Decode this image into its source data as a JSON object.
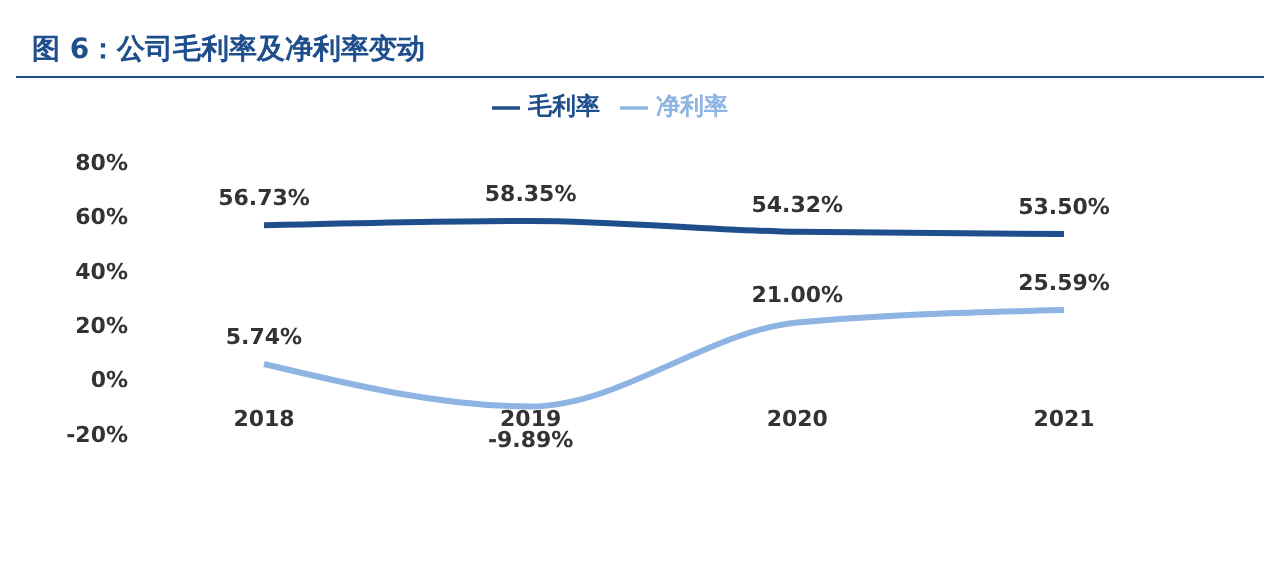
{
  "chart_data": {
    "type": "line",
    "title": "图 6：公司毛利率及净利率变动",
    "categories": [
      "2018",
      "2019",
      "2020",
      "2021"
    ],
    "series": [
      {
        "name": "毛利率",
        "color": "#1f4e8c",
        "values": [
          56.73,
          58.35,
          54.32,
          53.5
        ],
        "value_labels": [
          "56.73%",
          "58.35%",
          "54.32%",
          "53.50%"
        ]
      },
      {
        "name": "净利率",
        "color": "#8db4e2",
        "values": [
          5.74,
          -9.89,
          21.0,
          25.59
        ],
        "value_labels": [
          "5.74%",
          "-9.89%",
          "21.00%",
          "25.59%"
        ]
      }
    ],
    "ylim": [
      -20,
      80
    ],
    "yticks": [
      {
        "value": -20,
        "label": "-20%"
      },
      {
        "value": 0,
        "label": "0%"
      },
      {
        "value": 20,
        "label": "20%"
      },
      {
        "value": 40,
        "label": "40%"
      },
      {
        "value": 60,
        "label": "60%"
      },
      {
        "value": 80,
        "label": "80%"
      }
    ],
    "grid": false,
    "legend": "top",
    "marker": "none",
    "line_style": "solid"
  }
}
